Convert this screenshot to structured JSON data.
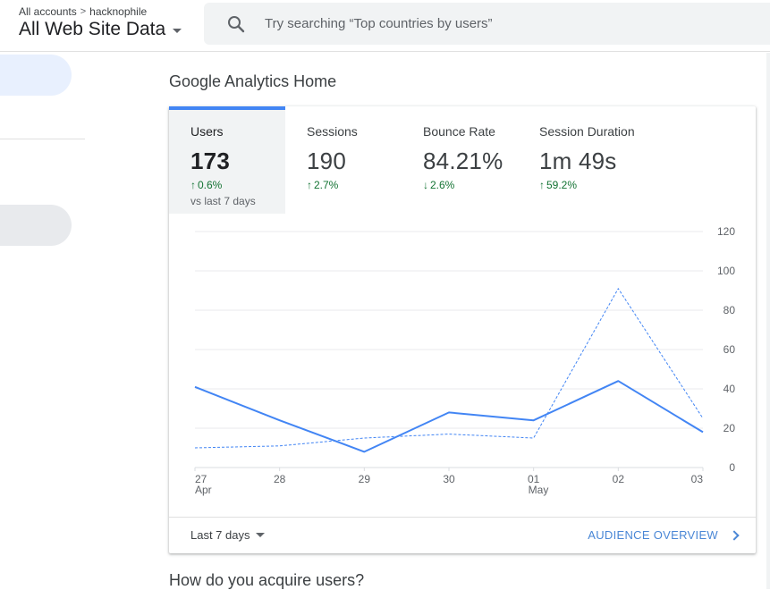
{
  "header": {
    "breadcrumb_accounts": "All accounts",
    "breadcrumb_property": "hacknophile",
    "view_name": "All Web Site Data",
    "search_placeholder": "Try searching “Top countries by users”",
    "search_icon": "search-icon"
  },
  "page": {
    "title": "Google Analytics Home",
    "next_section_title": "How do you acquire users?"
  },
  "metrics": [
    {
      "label": "Users",
      "value": "173",
      "change": "0.6%",
      "direction": "up",
      "compare": "vs last 7 days",
      "active": true
    },
    {
      "label": "Sessions",
      "value": "190",
      "change": "2.7%",
      "direction": "up",
      "active": false
    },
    {
      "label": "Bounce Rate",
      "value": "84.21%",
      "change": "2.6%",
      "direction": "down",
      "active": false
    },
    {
      "label": "Session Duration",
      "value": "1m 49s",
      "change": "59.2%",
      "direction": "up",
      "active": false
    }
  ],
  "footer": {
    "date_range": "Last 7 days",
    "audience_link": "AUDIENCE OVERVIEW"
  },
  "colors": {
    "accent": "#4285f4",
    "positive": "#137333",
    "link": "#4a87d6"
  },
  "chart_data": {
    "type": "line",
    "x": [
      "27 Apr",
      "28",
      "29",
      "30",
      "01 May",
      "02",
      "03"
    ],
    "x_tick_top": [
      "27",
      "28",
      "29",
      "30",
      "01",
      "02",
      "03"
    ],
    "x_tick_bottom": [
      "Apr",
      "",
      "",
      "",
      "May",
      "",
      ""
    ],
    "y_ticks": [
      "120",
      "100",
      "80",
      "60",
      "40",
      "20",
      "0"
    ],
    "ylim": [
      0,
      120
    ],
    "grid": true,
    "series": [
      {
        "style": "solid",
        "values": [
          41,
          24,
          8,
          28,
          24,
          44,
          18
        ]
      },
      {
        "style": "dashed",
        "values": [
          10,
          11,
          15,
          17,
          15,
          91,
          25
        ]
      }
    ]
  }
}
